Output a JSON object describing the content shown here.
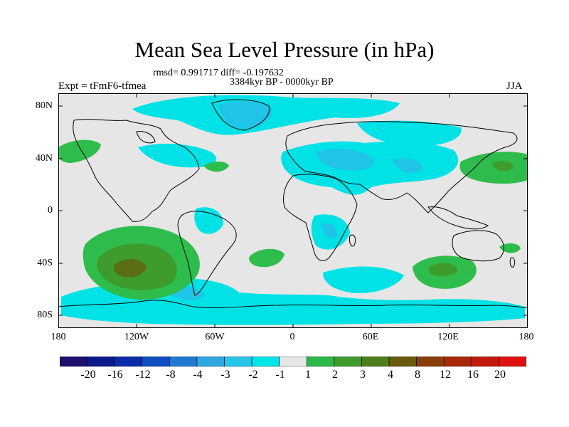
{
  "title": "Mean Sea Level Pressure (in hPa)",
  "stats": "rmsd= 0.991717 diff= -0.197632",
  "period": "3384kyr BP - 0000kyr BP",
  "experiment": "Expt = tFmF6-tfmea",
  "season": "JJA",
  "axes": {
    "y_labels": [
      "80N",
      "40N",
      "0",
      "40S",
      "80S"
    ],
    "x_labels": [
      "180",
      "120W",
      "60W",
      "0",
      "60E",
      "120E",
      "180"
    ]
  },
  "colorbar": {
    "labels": [
      "-20",
      "-16",
      "-12",
      "-8",
      "-4",
      "-3",
      "-2",
      "-1",
      "1",
      "2",
      "3",
      "4",
      "8",
      "12",
      "16",
      "20"
    ],
    "colors": [
      "#1c0f6e",
      "#0b1a8a",
      "#0a2ca8",
      "#0d4ec0",
      "#1f78d2",
      "#2ea6e0",
      "#26c6e8",
      "#00e5e8",
      "#e6e6e6",
      "#2cb84a",
      "#3f9a2e",
      "#4f7f1c",
      "#6a5a0e",
      "#8a3e08",
      "#a82804",
      "#c41a0c",
      "#e01010"
    ]
  },
  "colors": {
    "background": "#e6e6e6",
    "neg_1": "#00e2e6",
    "neg_2": "#20c4e6",
    "neg_3": "#39a4dc",
    "pos_1": "#2ebd4c",
    "pos_2": "#3e9c2c",
    "pos_3": "#5a6e14",
    "coast": "#000000"
  }
}
